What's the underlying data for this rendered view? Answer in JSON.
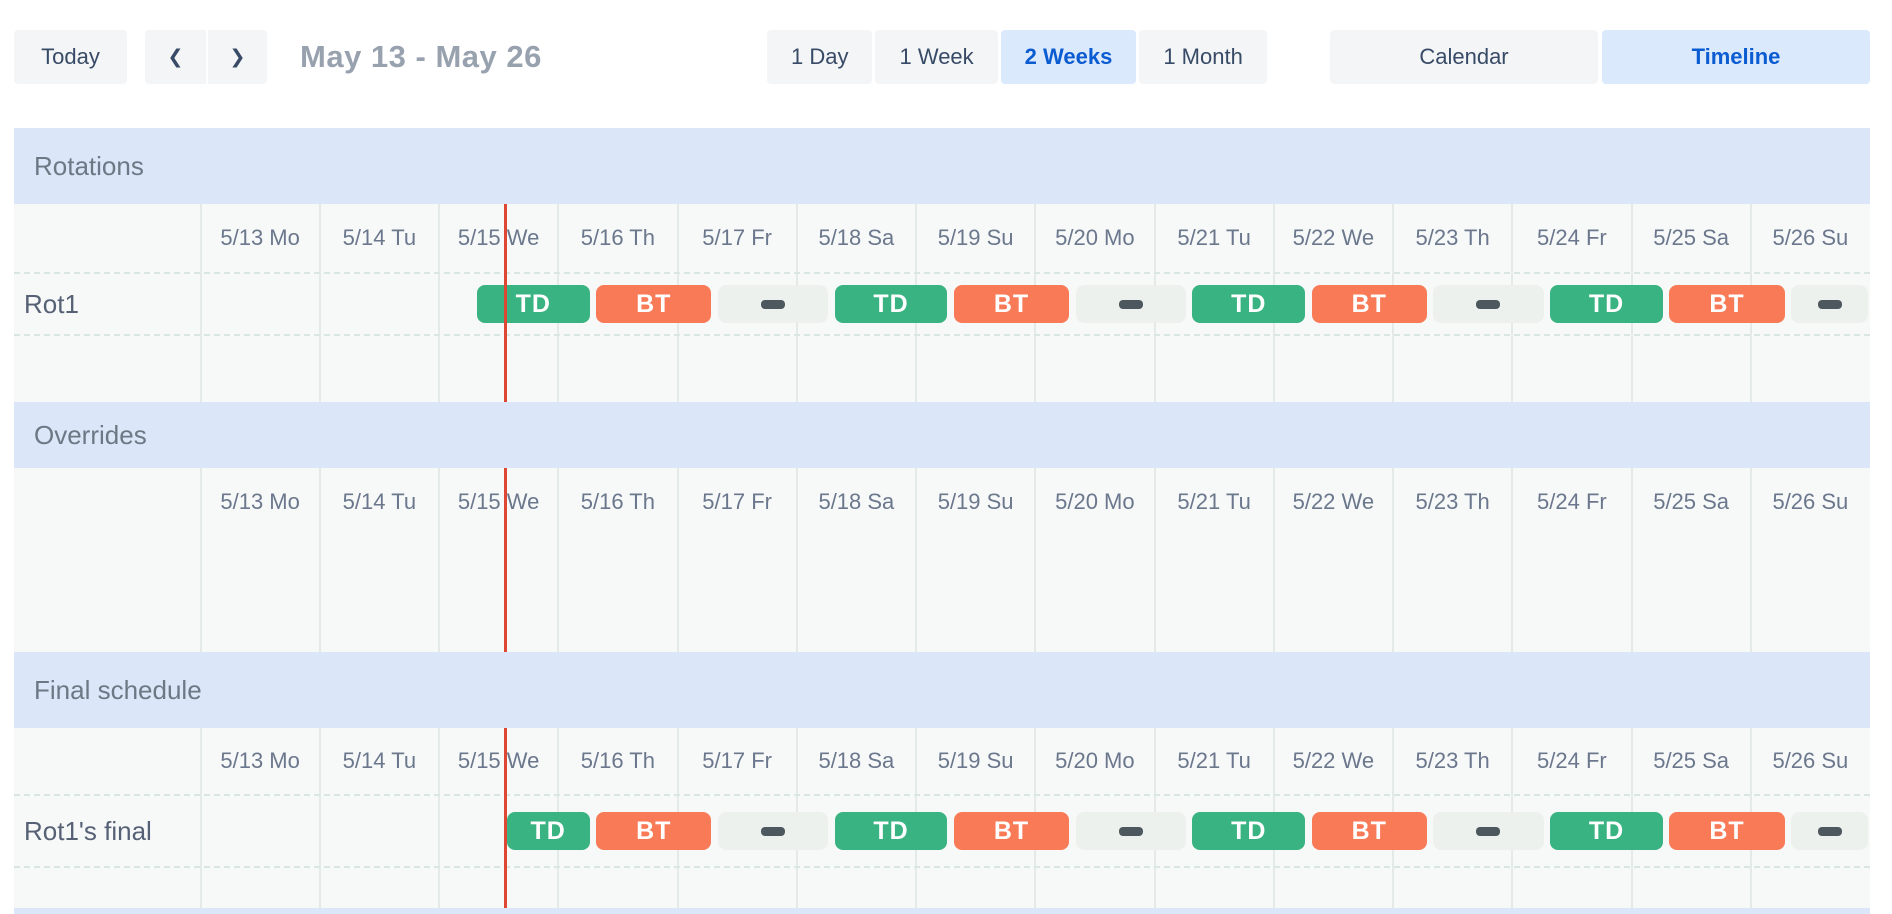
{
  "toolbar": {
    "today_label": "Today",
    "prev_glyph": "❮",
    "next_glyph": "❯",
    "range_title": "May 13 - May 26",
    "view_buttons": [
      {
        "label": "1 Day",
        "active": false
      },
      {
        "label": "1 Week",
        "active": false
      },
      {
        "label": "2 Weeks",
        "active": true
      },
      {
        "label": "1 Month",
        "active": false
      }
    ],
    "mode_buttons": [
      {
        "label": "Calendar",
        "active": false
      },
      {
        "label": "Timeline",
        "active": true
      }
    ]
  },
  "timeline": {
    "day_labels": [
      "5/13 Mo",
      "5/14 Tu",
      "5/15 We",
      "5/16 Th",
      "5/17 Fr",
      "5/18 Sa",
      "5/19 Su",
      "5/20 Mo",
      "5/21 Tu",
      "5/22 We",
      "5/23 Th",
      "5/24 Fr",
      "5/25 Sa",
      "5/26 Su"
    ],
    "now_day_offset": 2.56,
    "sections": [
      {
        "title": "Rotations",
        "rows": [
          {
            "label": "Rot1",
            "segments": [
              {
                "type": "td",
                "label": "TD",
                "start": 2.31,
                "end": 3.28
              },
              {
                "type": "bt",
                "label": "BT",
                "start": 3.31,
                "end": 4.3
              },
              {
                "type": "off",
                "start": 4.33,
                "end": 5.28
              },
              {
                "type": "td",
                "label": "TD",
                "start": 5.31,
                "end": 6.28
              },
              {
                "type": "bt",
                "label": "BT",
                "start": 6.31,
                "end": 7.3
              },
              {
                "type": "off",
                "start": 7.33,
                "end": 8.28
              },
              {
                "type": "td",
                "label": "TD",
                "start": 8.31,
                "end": 9.28
              },
              {
                "type": "bt",
                "label": "BT",
                "start": 9.31,
                "end": 10.3
              },
              {
                "type": "off",
                "start": 10.33,
                "end": 11.28
              },
              {
                "type": "td",
                "label": "TD",
                "start": 11.31,
                "end": 12.28
              },
              {
                "type": "bt",
                "label": "BT",
                "start": 12.31,
                "end": 13.3
              },
              {
                "type": "off",
                "start": 13.33,
                "end": 14.0
              }
            ]
          }
        ]
      },
      {
        "title": "Overrides",
        "rows": []
      },
      {
        "title": "Final schedule",
        "rows": [
          {
            "label": "Rot1's final",
            "segments": [
              {
                "type": "td",
                "label": "TD",
                "start": 2.56,
                "end": 3.28
              },
              {
                "type": "bt",
                "label": "BT",
                "start": 3.31,
                "end": 4.3
              },
              {
                "type": "off",
                "start": 4.33,
                "end": 5.28
              },
              {
                "type": "td",
                "label": "TD",
                "start": 5.31,
                "end": 6.28
              },
              {
                "type": "bt",
                "label": "BT",
                "start": 6.31,
                "end": 7.3
              },
              {
                "type": "off",
                "start": 7.33,
                "end": 8.28
              },
              {
                "type": "td",
                "label": "TD",
                "start": 8.31,
                "end": 9.28
              },
              {
                "type": "bt",
                "label": "BT",
                "start": 9.31,
                "end": 10.3
              },
              {
                "type": "off",
                "start": 10.33,
                "end": 11.28
              },
              {
                "type": "td",
                "label": "TD",
                "start": 11.31,
                "end": 12.28
              },
              {
                "type": "bt",
                "label": "BT",
                "start": 12.31,
                "end": 13.3
              },
              {
                "type": "off",
                "start": 13.33,
                "end": 14.0
              }
            ]
          }
        ]
      }
    ]
  },
  "colors": {
    "td_green": "#39b381",
    "bt_orange": "#f97a57",
    "off_bg": "#edf1ee",
    "off_dash": "#4d585e",
    "now_line": "#dd4733",
    "section_band_bg": "#dbe6f8",
    "section_band_text": "#6d7884",
    "active_button_bg": "#dbe9fd",
    "active_button_text": "#0b5cd1",
    "button_bg": "#f4f5f7",
    "button_text": "#374a66",
    "range_title_text": "#98a1ae",
    "date_label_text": "#6b778c",
    "row_label_text": "#566175",
    "grid_bg": "#f7f9f9",
    "grid_line": "#e3eae7",
    "row_dash_line": "#d9e6e2"
  }
}
